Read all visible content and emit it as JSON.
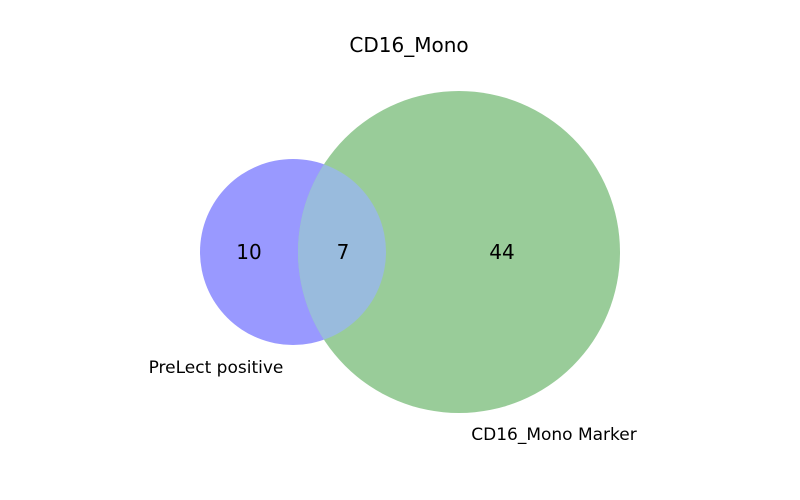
{
  "title": "CD16_Mono",
  "sets": [
    {
      "id": "A",
      "label": "PreLect positive",
      "color": "#9999ff"
    },
    {
      "id": "B",
      "label": "CD16_Mono Marker",
      "color": "#99cc99"
    }
  ],
  "overlap_color": "#99bbdd",
  "counts": {
    "only_a": "10",
    "intersection": "7",
    "only_b": "44"
  }
}
